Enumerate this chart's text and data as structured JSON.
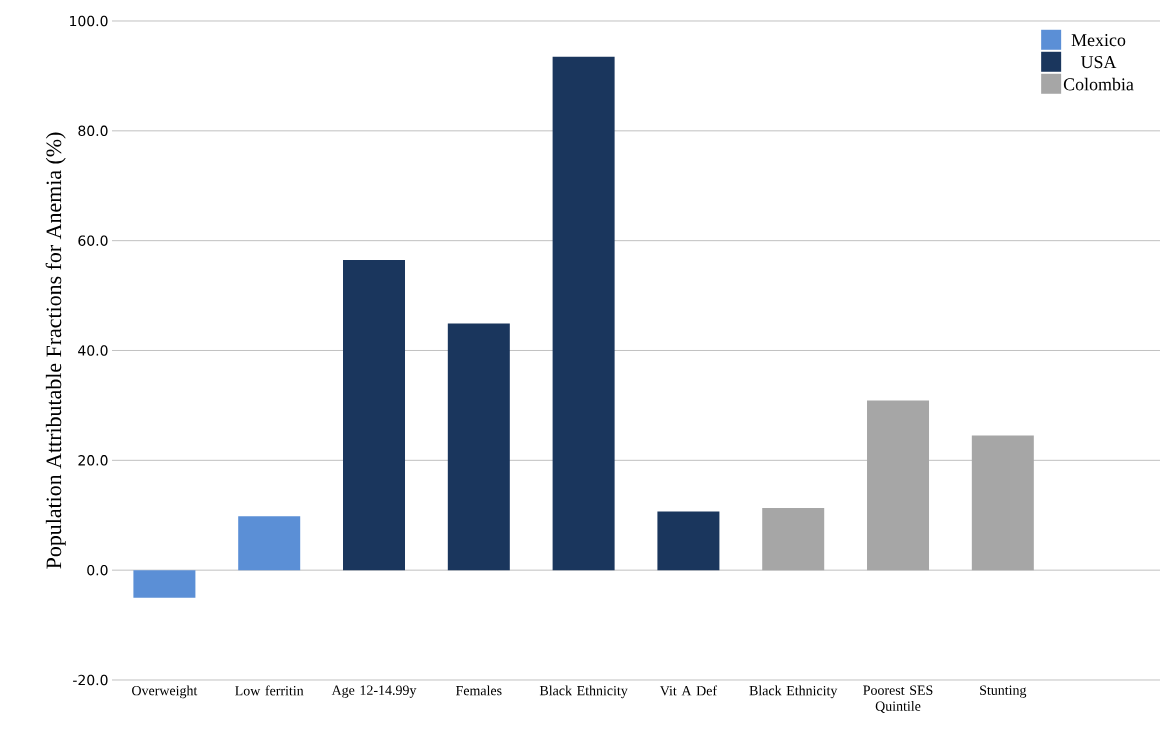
{
  "chart_data": {
    "type": "bar",
    "ylabel": "Population Attributable Fractions for Anemia (%)",
    "categories": [
      "Overweight",
      "Low ferritin",
      "Age 12-14.99y",
      "Females",
      "Black Ethnicity",
      "Vit A Def",
      "Black Ethnicity",
      "Poorest SES Quintile",
      "Stunting"
    ],
    "series": [
      {
        "name": "Mexico",
        "color": "#5b8fd6",
        "values": [
          -5.0,
          9.8,
          null,
          null,
          null,
          null,
          null,
          null,
          null
        ]
      },
      {
        "name": "USA",
        "color": "#1a365d",
        "values": [
          null,
          null,
          56.5,
          44.9,
          93.5,
          10.7,
          null,
          null,
          null
        ]
      },
      {
        "name": "Colombia",
        "color": "#a6a6a6",
        "values": [
          null,
          null,
          null,
          null,
          null,
          null,
          11.3,
          30.9,
          24.5
        ]
      }
    ],
    "ylim": [
      -20,
      100
    ],
    "yticks": [
      {
        "value": -20,
        "label": "-20.0"
      },
      {
        "value": 0,
        "label": "0.0"
      },
      {
        "value": 20,
        "label": "20.0"
      },
      {
        "value": 40,
        "label": "40.0"
      },
      {
        "value": 60,
        "label": "60.0"
      },
      {
        "value": 80,
        "label": "80.0"
      },
      {
        "value": 100,
        "label": "100.0"
      }
    ],
    "grid": "y",
    "legend": "top right"
  }
}
